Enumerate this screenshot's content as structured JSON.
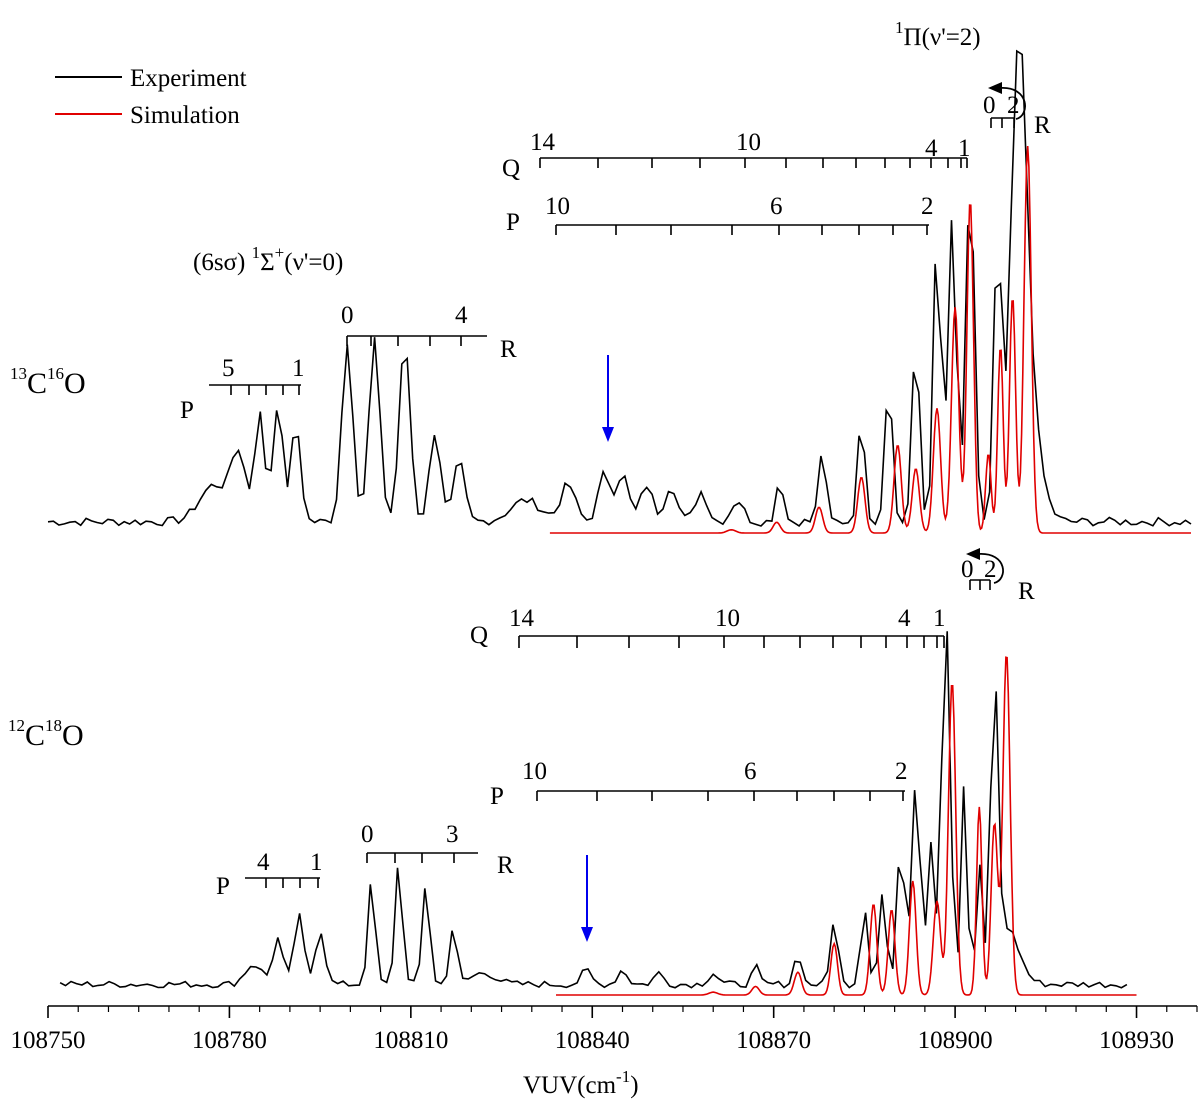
{
  "chart_data": {
    "type": "line",
    "x_unit": "cm-1",
    "xlabel": "VUV(cm",
    "xlabel_sup": "-1",
    "xlabel_close": ")",
    "xlim": [
      108750,
      108940
    ],
    "x_ticks": [
      108750,
      108780,
      108810,
      108840,
      108870,
      108900,
      108930
    ],
    "x_tick_labels": [
      "108750",
      "108780",
      "108810",
      "108840",
      "108870",
      "108900",
      "108930"
    ],
    "legend": {
      "position": "top-left",
      "entries": [
        {
          "label": "Experiment",
          "color": "#000000"
        },
        {
          "label": "Simulation",
          "color": "#e00000"
        }
      ]
    },
    "panels": [
      {
        "id": "13C16O",
        "label": {
          "sup1": "13",
          "base1": "C",
          "sup2": "16",
          "base2": "O"
        },
        "series": [
          {
            "name": "Experiment",
            "color": "#000000",
            "peaks": [
              [
                108777.5,
                0.17,
                2.4
              ],
              [
                108781.5,
                0.3,
                1.2
              ],
              [
                108785.0,
                0.5,
                0.8
              ],
              [
                108788.0,
                0.55,
                0.8
              ],
              [
                108791.0,
                0.45,
                0.8
              ],
              [
                108799.5,
                0.84,
                0.9
              ],
              [
                108804.0,
                0.84,
                0.9
              ],
              [
                108809.0,
                0.84,
                0.9
              ],
              [
                108814.0,
                0.42,
                0.9
              ],
              [
                108818.0,
                0.28,
                0.9
              ],
              [
                108829.0,
                0.1,
                2.5
              ],
              [
                108836.0,
                0.17,
                1.2
              ],
              [
                108842.0,
                0.22,
                1.0
              ],
              [
                108845.0,
                0.22,
                1.0
              ],
              [
                108849.0,
                0.17,
                1.0
              ],
              [
                108853.0,
                0.17,
                1.0
              ],
              [
                108858.0,
                0.14,
                1.0
              ],
              [
                108864.0,
                0.1,
                1.0
              ],
              [
                108871.0,
                0.2,
                0.6
              ],
              [
                108878.0,
                0.33,
                0.6
              ],
              [
                108884.5,
                0.48,
                0.6
              ],
              [
                108889.0,
                0.67,
                0.6
              ],
              [
                108893.5,
                0.85,
                0.6
              ],
              [
                108897.0,
                1.34,
                0.6
              ],
              [
                108899.5,
                1.4,
                0.7
              ],
              [
                108902.5,
                1.6,
                0.7
              ],
              [
                108907.0,
                1.3,
                0.6
              ],
              [
                108910.5,
                1.9,
                1.3
              ],
              [
                108912.0,
                0.5,
                2.0
              ]
            ],
            "baseline": 0.02,
            "noise": 0.02
          },
          {
            "name": "Simulation",
            "color": "#e00000",
            "peaks": [
              [
                108863.0,
                0.015,
                0.7
              ],
              [
                108870.5,
                0.05,
                0.6
              ],
              [
                108877.5,
                0.12,
                0.6
              ],
              [
                108884.5,
                0.26,
                0.6
              ],
              [
                108890.5,
                0.41,
                0.6
              ],
              [
                108893.5,
                0.3,
                0.6
              ],
              [
                108897.0,
                0.58,
                0.6
              ],
              [
                108900.0,
                1.05,
                0.6
              ],
              [
                108902.5,
                1.55,
                0.55
              ],
              [
                108905.5,
                0.37,
                0.45
              ],
              [
                108907.5,
                0.87,
                0.45
              ],
              [
                108909.5,
                1.1,
                0.5
              ],
              [
                108912.0,
                1.8,
                0.6
              ]
            ],
            "baseline": 0.0,
            "noise": 0.0
          }
        ],
        "state_labels": [
          {
            "text": "(6sσ) ",
            "sup": "1",
            "sym": "Σ",
            "sup2": "+",
            "tail": "(ν'=0)"
          },
          {
            "sup": "1",
            "sym": "Π",
            "tail": "(ν'=2)"
          }
        ],
        "branches": [
          {
            "name": "P",
            "first_label": "5",
            "last_label": "1"
          },
          {
            "name": "R",
            "first_label": "0",
            "last_label": "4"
          },
          {
            "name": "Q",
            "first_label": "14",
            "mid_label": "10",
            "end_label": "4",
            "last_label": "1"
          },
          {
            "name": "P",
            "first_label": "10",
            "mid_label": "6",
            "last_label": "2"
          },
          {
            "name": "R",
            "first_label": "0",
            "second_label": "2"
          }
        ],
        "arrow_x": 108843
      },
      {
        "id": "12C18O",
        "label": {
          "sup1": "12",
          "base1": "C",
          "sup2": "18",
          "base2": "O"
        },
        "series": [
          {
            "name": "Experiment",
            "color": "#000000",
            "peaks": [
              [
                108784.0,
                0.07,
                1.4
              ],
              [
                108788.0,
                0.16,
                0.8
              ],
              [
                108791.5,
                0.24,
                0.8
              ],
              [
                108795.0,
                0.19,
                0.8
              ],
              [
                108803.5,
                0.36,
                0.6
              ],
              [
                108808.0,
                0.43,
                0.6
              ],
              [
                108812.5,
                0.36,
                0.6
              ],
              [
                108817.0,
                0.2,
                0.6
              ],
              [
                108822.0,
                0.04,
                2.0
              ],
              [
                108839.0,
                0.05,
                0.8
              ],
              [
                108845.0,
                0.05,
                0.8
              ],
              [
                108851.0,
                0.04,
                0.8
              ],
              [
                108860.0,
                0.04,
                0.8
              ],
              [
                108867.0,
                0.06,
                0.6
              ],
              [
                108874.0,
                0.11,
                0.6
              ],
              [
                108880.0,
                0.23,
                0.6
              ],
              [
                108885.0,
                0.27,
                0.6
              ],
              [
                108888.0,
                0.32,
                0.6
              ],
              [
                108891.0,
                0.5,
                0.6
              ],
              [
                108893.5,
                0.72,
                0.7
              ],
              [
                108896.0,
                0.5,
                0.6
              ],
              [
                108898.5,
                1.3,
                0.7
              ],
              [
                108901.5,
                0.7,
                0.5
              ],
              [
                108904.0,
                0.4,
                0.5
              ],
              [
                108906.5,
                1.0,
                0.6
              ],
              [
                108908.5,
                0.2,
                2.0
              ]
            ],
            "baseline": 0.02,
            "noise": 0.012
          },
          {
            "name": "Simulation",
            "color": "#e00000",
            "peaks": [
              [
                108860.0,
                0.01,
                0.7
              ],
              [
                108867.0,
                0.03,
                0.6
              ],
              [
                108874.0,
                0.08,
                0.6
              ],
              [
                108880.0,
                0.18,
                0.55
              ],
              [
                108886.5,
                0.32,
                0.55
              ],
              [
                108889.5,
                0.3,
                0.55
              ],
              [
                108893.0,
                0.4,
                0.55
              ],
              [
                108897.0,
                0.33,
                0.6
              ],
              [
                108899.5,
                1.1,
                0.6
              ],
              [
                108904.0,
                0.66,
                0.45
              ],
              [
                108906.5,
                0.6,
                0.55
              ],
              [
                108908.5,
                1.2,
                0.6
              ]
            ],
            "baseline": 0.0,
            "noise": 0.0
          }
        ],
        "branches": [
          {
            "name": "P",
            "first_label": "4",
            "last_label": "1"
          },
          {
            "name": "R",
            "first_label": "0",
            "last_label": "3"
          },
          {
            "name": "Q",
            "first_label": "14",
            "mid_label": "10",
            "end_label": "4",
            "last_label": "1"
          },
          {
            "name": "P",
            "first_label": "10",
            "mid_label": "6",
            "last_label": "2"
          },
          {
            "name": "R",
            "first_label": "0",
            "second_label": "2"
          }
        ],
        "arrow_x": 108840
      }
    ]
  }
}
